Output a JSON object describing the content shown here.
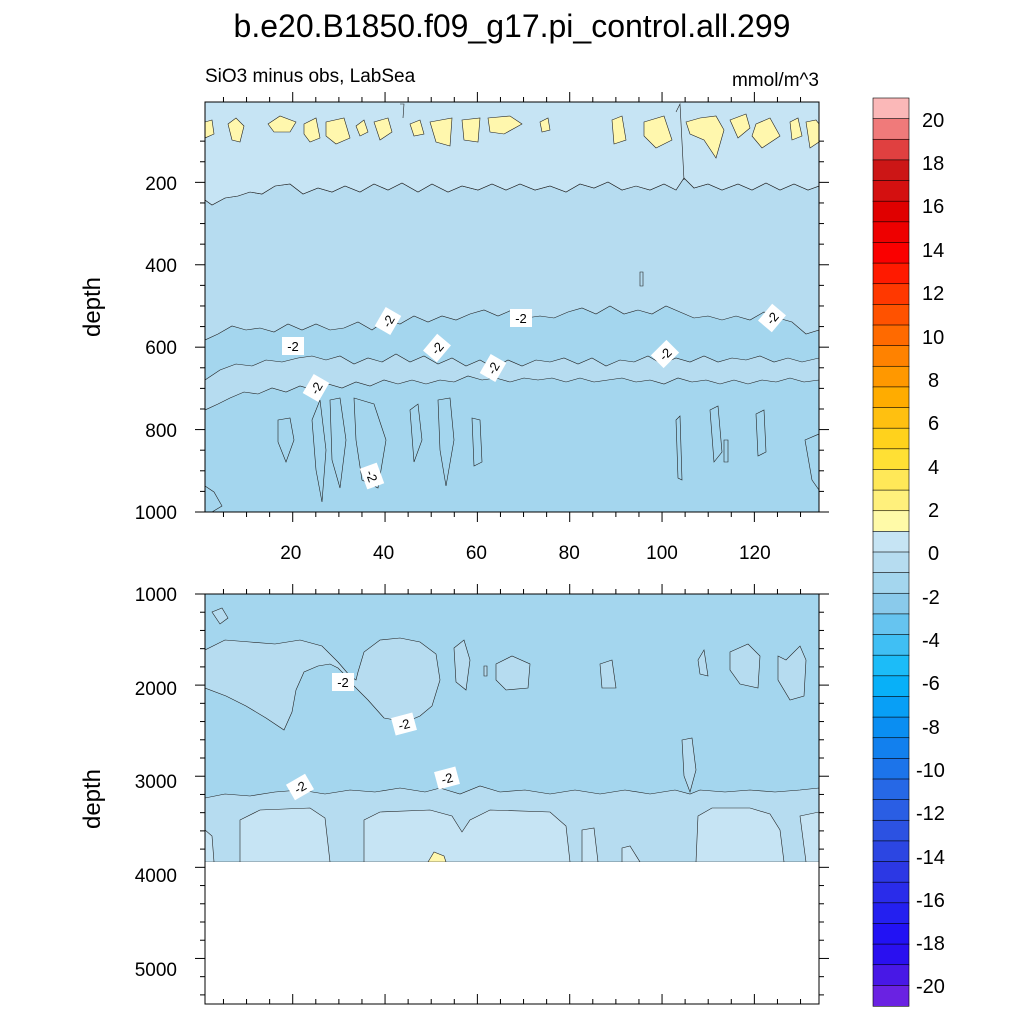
{
  "chart_data": [
    {
      "type": "contour",
      "panel": "upper",
      "title": "b.e20.B1850.f09_g17.pi_control.all.299",
      "left_subtitle": "SiO3 minus obs, LabSea",
      "right_subtitle": "mmol/m^3",
      "xlabel": "",
      "ylabel": "depth",
      "xlim": [
        1,
        134
      ],
      "ylim": [
        1000,
        5
      ],
      "xticks": [
        20,
        40,
        60,
        80,
        100,
        120
      ],
      "xtick_labels": [
        "20",
        "40",
        "60",
        "80",
        "100",
        "120"
      ],
      "yticks": [
        200,
        400,
        600,
        800,
        1000
      ],
      "ytick_labels": [
        "200",
        "400",
        "600",
        "800",
        "1000"
      ],
      "contour_line_labels": [
        "-2",
        "-2",
        "-2",
        "-2",
        "-2",
        "-2",
        "-2",
        "-2",
        "-2"
      ],
      "regions": [
        {
          "level_range": [
            0,
            2
          ],
          "depth_range": [
            40,
            100
          ],
          "note": "patches near surface"
        },
        {
          "level_range": [
            -1,
            0
          ],
          "depth_range": [
            5,
            230
          ]
        },
        {
          "level_range": [
            -2,
            -1
          ],
          "depth_range": [
            230,
            560
          ]
        },
        {
          "level_range": [
            -3,
            -2
          ],
          "depth_range": [
            560,
            620
          ]
        },
        {
          "level_range": [
            -2,
            -1
          ],
          "depth_range": [
            620,
            690
          ]
        },
        {
          "level_range": [
            -3,
            -2
          ],
          "depth_range": [
            690,
            1000
          ]
        }
      ]
    },
    {
      "type": "contour",
      "panel": "lower",
      "xlabel": "",
      "ylabel": "depth",
      "xlim": [
        1,
        134
      ],
      "ylim": [
        5500,
        1000
      ],
      "yticks": [
        1000,
        2000,
        3000,
        4000,
        5000
      ],
      "ytick_labels": [
        "1000",
        "2000",
        "3000",
        "4000",
        "5000"
      ],
      "contour_line_labels": [
        "-2",
        "-2",
        "-2",
        "-2"
      ],
      "missing_below_depth": 3880,
      "regions": [
        {
          "level_range": [
            -3,
            -2
          ],
          "depth_range": [
            1000,
            1600
          ]
        },
        {
          "level_range": [
            -2,
            -1
          ],
          "depth_range": [
            1500,
            2400
          ],
          "note": "patches"
        },
        {
          "level_range": [
            -3,
            -2
          ],
          "depth_range": [
            1800,
            3200
          ]
        },
        {
          "level_range": [
            -2,
            -1
          ],
          "depth_range": [
            3200,
            3880
          ]
        },
        {
          "level_range": [
            -1,
            0
          ],
          "depth_range": [
            3300,
            3880
          ],
          "note": "patches"
        }
      ]
    }
  ],
  "colorbar": {
    "labels": [
      "20",
      "18",
      "16",
      "14",
      "12",
      "10",
      "8",
      "6",
      "4",
      "2",
      "0",
      "-2",
      "-4",
      "-6",
      "-8",
      "-10",
      "-12",
      "-14",
      "-16",
      "-18",
      "-20"
    ],
    "levels": [
      22,
      21,
      20,
      19,
      18,
      17,
      16,
      15,
      14,
      13,
      12,
      11,
      10,
      9,
      8,
      7,
      6,
      5,
      4,
      3,
      2,
      1,
      0,
      -1,
      -2,
      -3,
      -4,
      -5,
      -6,
      -7,
      -8,
      -9,
      -10,
      -11,
      -12,
      -13,
      -14,
      -15,
      -16,
      -17,
      -18,
      -19,
      -20,
      -21,
      -22
    ],
    "colors": [
      "#fbb8b8",
      "#f07a7a",
      "#e04040",
      "#cc1616",
      "#d41010",
      "#e00000",
      "#ee0000",
      "#fa0000",
      "#ff1a00",
      "#ff3800",
      "#ff5200",
      "#ff6a00",
      "#ff8200",
      "#ff9800",
      "#ffac00",
      "#ffc010",
      "#ffd21c",
      "#ffe034",
      "#ffe858",
      "#fff07c",
      "#fffaa8",
      "#c6e4f4",
      "#b6dcf0",
      "#a4d6ee",
      "#8acaeb",
      "#66c4f0",
      "#40bff4",
      "#1cbcf8",
      "#08b0f8",
      "#089ff6",
      "#0a8ef2",
      "#1280ee",
      "#1c74ea",
      "#2668e6",
      "#2a5ee4",
      "#2c52e2",
      "#2c46e2",
      "#2c38e4",
      "#2a2cea",
      "#2420f0",
      "#2212f4",
      "#2a10f0",
      "#4818e6",
      "#6a22e2"
    ],
    "shown_color_levels": [
      "20",
      "18",
      "16",
      "14",
      "12",
      "10",
      "8",
      "6",
      "4",
      "2",
      "0",
      "-2",
      "-4",
      "-6",
      "-8",
      "-10",
      "-12",
      "-14",
      "-16",
      "-18",
      "-20"
    ]
  },
  "colors": {
    "level_0_2": "#fff7ad",
    "level_m1_0": "#c6e4f4",
    "level_m2_m1": "#b6dcf0",
    "level_m3_m2": "#a4d6ee",
    "missing": "#ffffff"
  }
}
